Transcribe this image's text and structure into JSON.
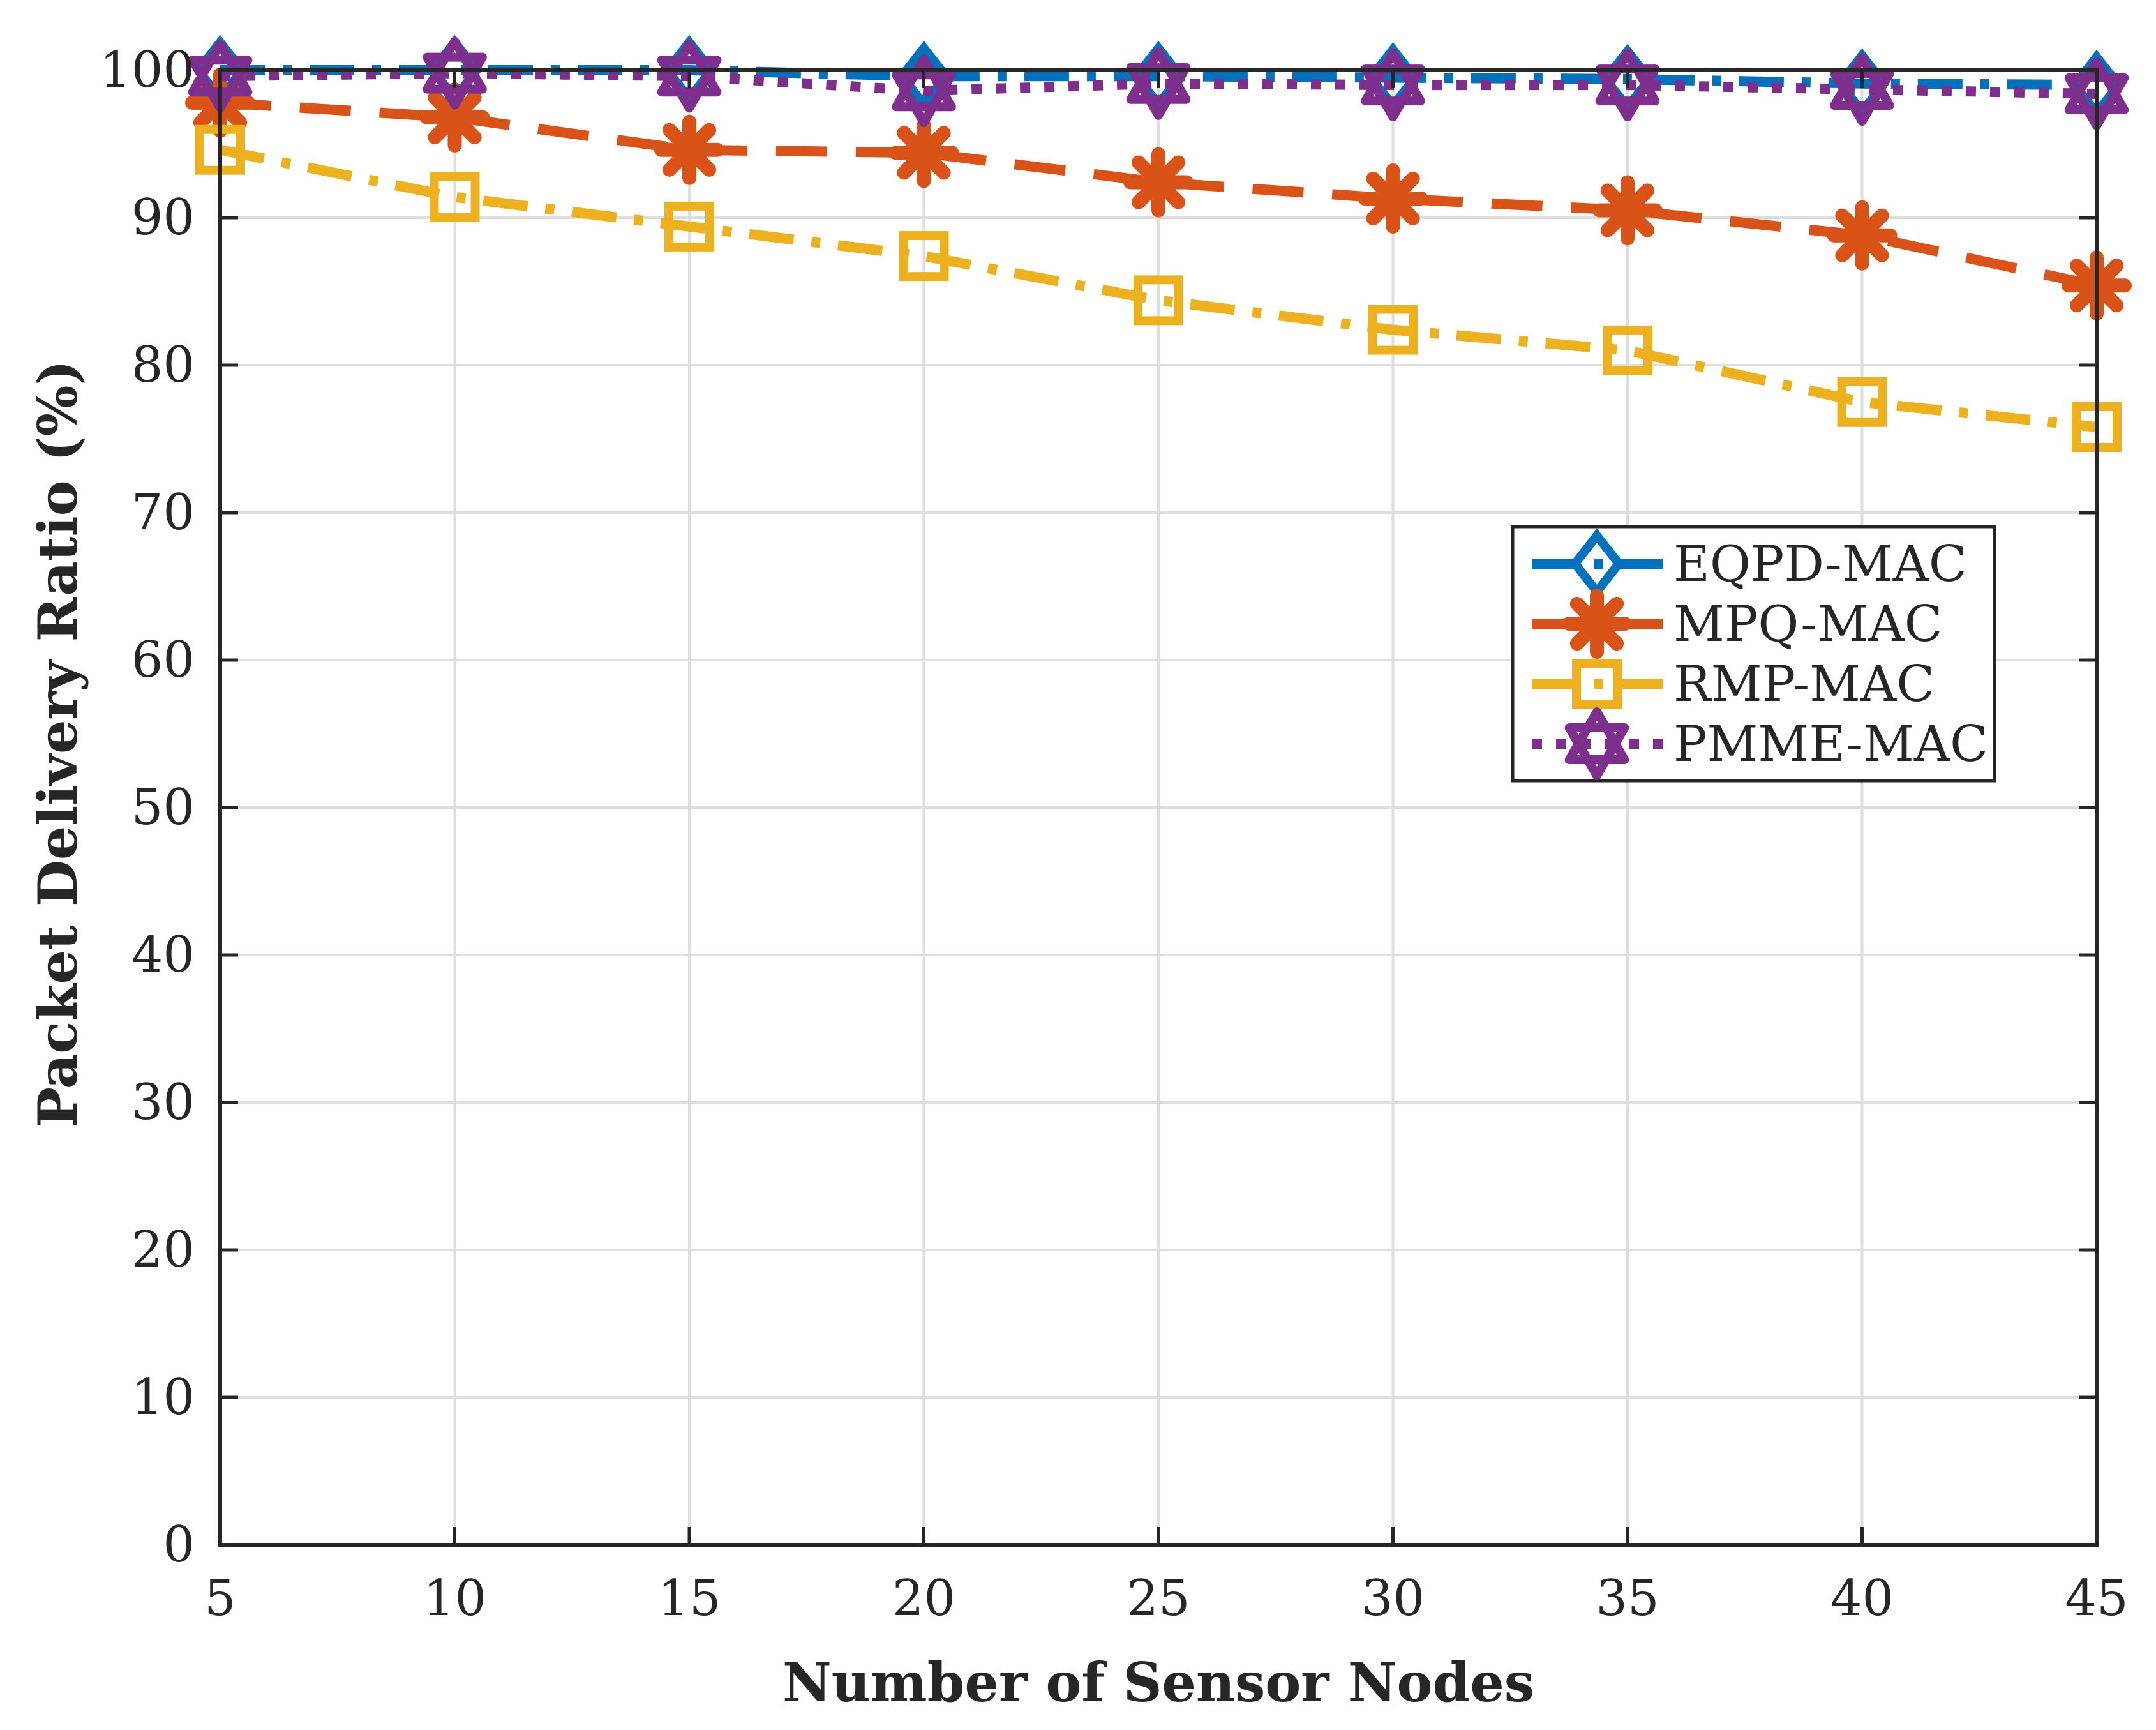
{
  "chart_data": {
    "type": "line",
    "title": "",
    "xlabel": "Number of Sensor Nodes",
    "ylabel": "Packet Delivery Ratio (%)",
    "x": [
      5,
      10,
      15,
      20,
      25,
      30,
      35,
      40,
      45
    ],
    "xlim": [
      5,
      45
    ],
    "ylim": [
      0,
      100
    ],
    "xticks": [
      5,
      10,
      15,
      20,
      25,
      30,
      35,
      40,
      45
    ],
    "yticks": [
      0,
      10,
      20,
      30,
      40,
      50,
      60,
      70,
      80,
      90,
      100
    ],
    "grid": true,
    "legend_position": "right, upper-middle",
    "series": [
      {
        "name": "EQPD-MAC",
        "color": "#0072BD",
        "line_style": "dash-dot",
        "marker": "diamond",
        "values": [
          100,
          100,
          100,
          99.6,
          99.6,
          99.5,
          99.4,
          99.1,
          99.0
        ]
      },
      {
        "name": "MPQ-MAC",
        "color": "#D95319",
        "line_style": "dashed",
        "marker": "asterisk",
        "values": [
          97.8,
          96.8,
          94.6,
          94.4,
          92.4,
          91.3,
          90.5,
          88.8,
          85.4
        ]
      },
      {
        "name": "RMP-MAC",
        "color": "#EDB120",
        "line_style": "dash-dot",
        "marker": "square",
        "values": [
          94.6,
          91.4,
          89.4,
          87.4,
          84.4,
          82.4,
          81.0,
          77.5,
          75.8
        ]
      },
      {
        "name": "PMME-MAC",
        "color": "#7E2F8E",
        "line_style": "dotted",
        "marker": "hexagram",
        "values": [
          99.6,
          99.8,
          99.6,
          98.6,
          99.1,
          99.0,
          99.0,
          98.7,
          98.4
        ]
      }
    ]
  }
}
